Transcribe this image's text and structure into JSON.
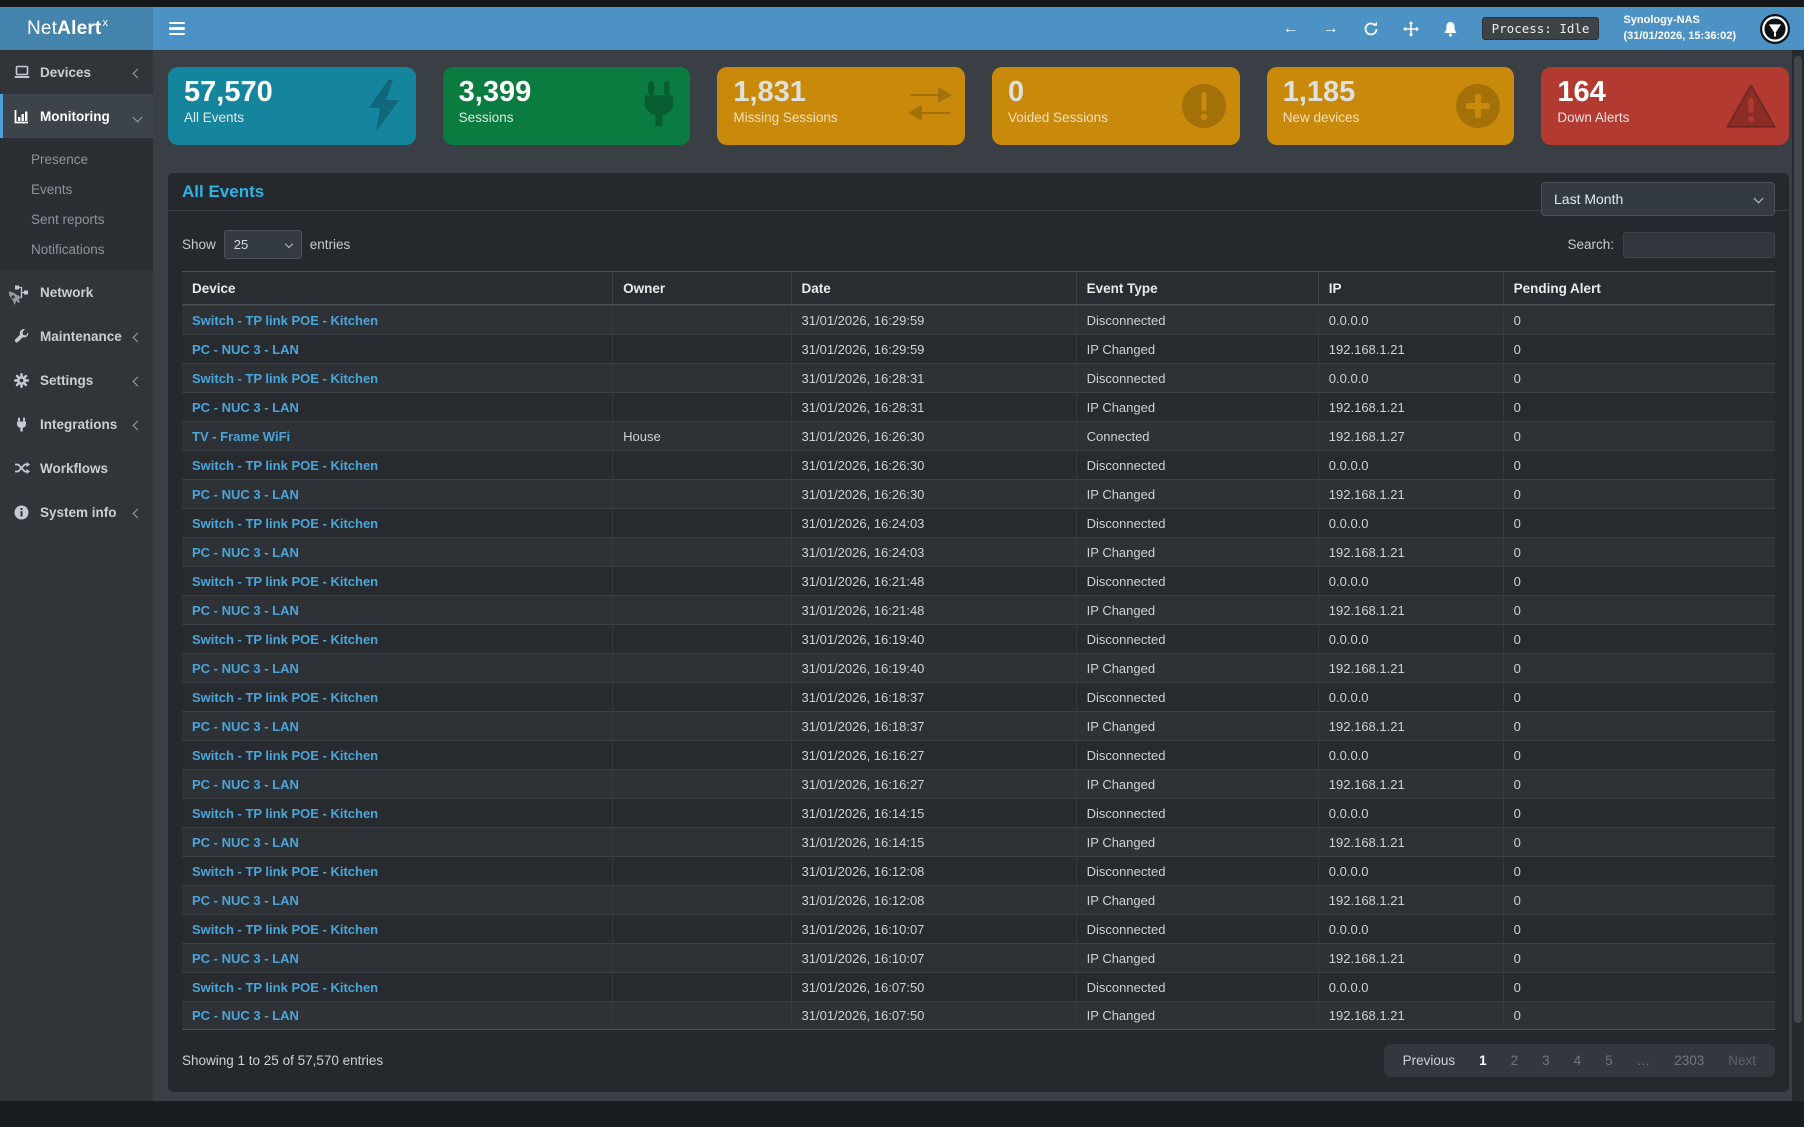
{
  "brand": {
    "name_prefix": "Net",
    "name_bold": "Alert",
    "superscript": "x"
  },
  "colors": {
    "topbar": "#4c92c4",
    "link": "#4aa5d9",
    "panel_title": "#2cb4e8"
  },
  "topbar": {
    "process_badge": "Process: Idle",
    "host_name": "Synology-NAS",
    "host_time": "(31/01/2026, 15:36:02)",
    "icons": [
      "back-arrow-icon",
      "forward-arrow-icon",
      "refresh-icon",
      "move-icon",
      "bell-icon",
      "user-avatar"
    ]
  },
  "sidebar": {
    "items": [
      {
        "label": "Devices",
        "icon": "laptop-icon",
        "chevron": "left"
      },
      {
        "label": "Monitoring",
        "icon": "chart-bar-icon",
        "chevron": "down",
        "active": true
      },
      {
        "label": "Network",
        "icon": "sitemap-icon"
      },
      {
        "label": "Maintenance",
        "icon": "wrench-icon",
        "chevron": "left"
      },
      {
        "label": "Settings",
        "icon": "gear-icon",
        "chevron": "left"
      },
      {
        "label": "Integrations",
        "icon": "plug-icon",
        "chevron": "left"
      },
      {
        "label": "Workflows",
        "icon": "shuffle-icon"
      },
      {
        "label": "System info",
        "icon": "info-icon",
        "chevron": "left"
      }
    ],
    "monitoring_submenu": [
      "Presence",
      "Events",
      "Sent reports",
      "Notifications"
    ]
  },
  "cards": [
    {
      "value": "57,570",
      "label": "All Events",
      "color": "#15859e",
      "icon": "bolt-icon"
    },
    {
      "value": "3,399",
      "label": "Sessions",
      "color": "#0a7c3f",
      "icon": "plug-icon"
    },
    {
      "value": "1,831",
      "label": "Missing Sessions",
      "color": "#c98a0c",
      "icon": "exchange-arrows-icon"
    },
    {
      "value": "0",
      "label": "Voided Sessions",
      "color": "#c98a0c",
      "icon": "exclamation-circle-icon"
    },
    {
      "value": "1,185",
      "label": "New devices",
      "color": "#c98a0c",
      "icon": "plus-circle-icon"
    },
    {
      "value": "164",
      "label": "Down Alerts",
      "color": "#b23a31",
      "icon": "warning-triangle-icon"
    }
  ],
  "panel": {
    "title": "All Events",
    "period_select": "Last Month",
    "show_label": "Show",
    "page_size": "25",
    "entries_label": "entries",
    "search": {
      "label": "Search:",
      "value": ""
    },
    "table": {
      "columns": [
        "Device",
        "Owner",
        "Date",
        "Event Type",
        "IP",
        "Pending Alert"
      ],
      "sort_column": "Date",
      "sort_direction": "desc",
      "rows": [
        [
          "Switch - TP link POE - Kitchen",
          "",
          "31/01/2026, 16:29:59",
          "Disconnected",
          "0.0.0.0",
          "0"
        ],
        [
          "PC - NUC 3 - LAN",
          "",
          "31/01/2026, 16:29:59",
          "IP Changed",
          "192.168.1.21",
          "0"
        ],
        [
          "Switch - TP link POE - Kitchen",
          "",
          "31/01/2026, 16:28:31",
          "Disconnected",
          "0.0.0.0",
          "0"
        ],
        [
          "PC - NUC 3 - LAN",
          "",
          "31/01/2026, 16:28:31",
          "IP Changed",
          "192.168.1.21",
          "0"
        ],
        [
          "TV - Frame WiFi",
          "House",
          "31/01/2026, 16:26:30",
          "Connected",
          "192.168.1.27",
          "0"
        ],
        [
          "Switch - TP link POE - Kitchen",
          "",
          "31/01/2026, 16:26:30",
          "Disconnected",
          "0.0.0.0",
          "0"
        ],
        [
          "PC - NUC 3 - LAN",
          "",
          "31/01/2026, 16:26:30",
          "IP Changed",
          "192.168.1.21",
          "0"
        ],
        [
          "Switch - TP link POE - Kitchen",
          "",
          "31/01/2026, 16:24:03",
          "Disconnected",
          "0.0.0.0",
          "0"
        ],
        [
          "PC - NUC 3 - LAN",
          "",
          "31/01/2026, 16:24:03",
          "IP Changed",
          "192.168.1.21",
          "0"
        ],
        [
          "Switch - TP link POE - Kitchen",
          "",
          "31/01/2026, 16:21:48",
          "Disconnected",
          "0.0.0.0",
          "0"
        ],
        [
          "PC - NUC 3 - LAN",
          "",
          "31/01/2026, 16:21:48",
          "IP Changed",
          "192.168.1.21",
          "0"
        ],
        [
          "Switch - TP link POE - Kitchen",
          "",
          "31/01/2026, 16:19:40",
          "Disconnected",
          "0.0.0.0",
          "0"
        ],
        [
          "PC - NUC 3 - LAN",
          "",
          "31/01/2026, 16:19:40",
          "IP Changed",
          "192.168.1.21",
          "0"
        ],
        [
          "Switch - TP link POE - Kitchen",
          "",
          "31/01/2026, 16:18:37",
          "Disconnected",
          "0.0.0.0",
          "0"
        ],
        [
          "PC - NUC 3 - LAN",
          "",
          "31/01/2026, 16:18:37",
          "IP Changed",
          "192.168.1.21",
          "0"
        ],
        [
          "Switch - TP link POE - Kitchen",
          "",
          "31/01/2026, 16:16:27",
          "Disconnected",
          "0.0.0.0",
          "0"
        ],
        [
          "PC - NUC 3 - LAN",
          "",
          "31/01/2026, 16:16:27",
          "IP Changed",
          "192.168.1.21",
          "0"
        ],
        [
          "Switch - TP link POE - Kitchen",
          "",
          "31/01/2026, 16:14:15",
          "Disconnected",
          "0.0.0.0",
          "0"
        ],
        [
          "PC - NUC 3 - LAN",
          "",
          "31/01/2026, 16:14:15",
          "IP Changed",
          "192.168.1.21",
          "0"
        ],
        [
          "Switch - TP link POE - Kitchen",
          "",
          "31/01/2026, 16:12:08",
          "Disconnected",
          "0.0.0.0",
          "0"
        ],
        [
          "PC - NUC 3 - LAN",
          "",
          "31/01/2026, 16:12:08",
          "IP Changed",
          "192.168.1.21",
          "0"
        ],
        [
          "Switch - TP link POE - Kitchen",
          "",
          "31/01/2026, 16:10:07",
          "Disconnected",
          "0.0.0.0",
          "0"
        ],
        [
          "PC - NUC 3 - LAN",
          "",
          "31/01/2026, 16:10:07",
          "IP Changed",
          "192.168.1.21",
          "0"
        ],
        [
          "Switch - TP link POE - Kitchen",
          "",
          "31/01/2026, 16:07:50",
          "Disconnected",
          "0.0.0.0",
          "0"
        ],
        [
          "PC - NUC 3 - LAN",
          "",
          "31/01/2026, 16:07:50",
          "IP Changed",
          "192.168.1.21",
          "0"
        ]
      ]
    },
    "footer": {
      "info": "Showing 1 to 25 of 57,570 entries",
      "pagination": {
        "previous": "Previous",
        "pages": [
          "1",
          "2",
          "3",
          "4",
          "5",
          "…",
          "2303"
        ],
        "next": "Next",
        "active": "1"
      }
    }
  }
}
